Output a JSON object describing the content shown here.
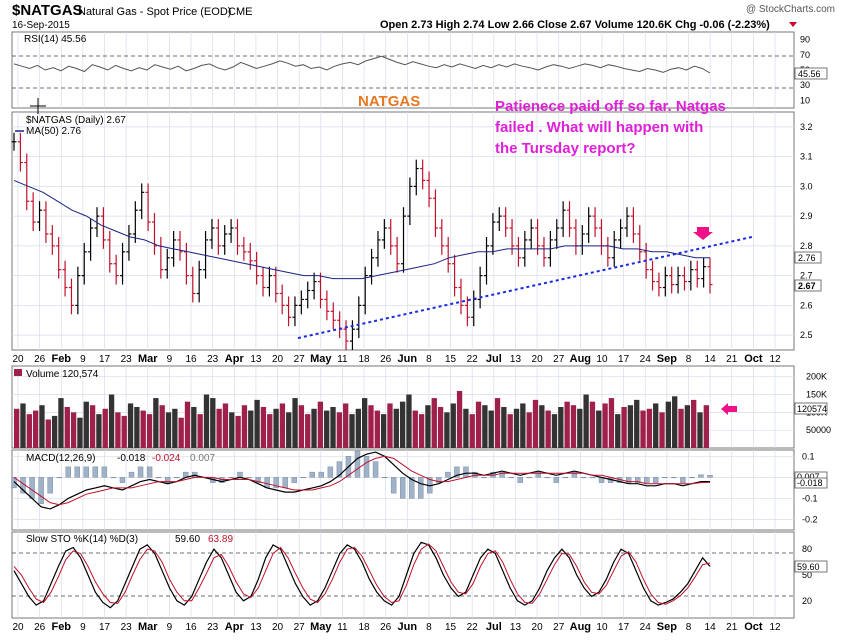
{
  "header": {
    "symbol": "$NATGAS",
    "description": "Natural Gas - Spot Price (EOD)",
    "exchange": "CME",
    "date": "16-Sep-2015",
    "watermark": "@ StockCharts.com",
    "ohlc_text": "Open 2.73  High 2.74  Low 2.66  Close 2.67  Volume 120.6K  Chg -0.06 (-2.23%)",
    "chg_arrow_color": "#cc0033"
  },
  "rsi": {
    "label": "RSI(14) 45.56",
    "value_label": "45.56",
    "levels": [
      "90",
      "70",
      "50",
      "30",
      "10"
    ],
    "series": [
      58,
      55,
      52,
      56,
      50,
      53,
      49,
      55,
      52,
      48,
      57,
      54,
      50,
      56,
      52,
      49,
      53,
      50,
      57,
      54,
      51,
      55,
      49,
      52,
      56,
      58,
      53,
      50,
      54,
      60,
      56,
      52,
      55,
      58,
      62,
      59,
      55,
      57,
      52,
      54,
      50,
      55,
      58,
      60,
      57,
      62,
      65,
      68,
      64,
      60,
      57,
      61,
      58,
      55,
      53,
      57,
      54,
      58,
      55,
      52,
      56,
      53,
      57,
      54,
      58,
      55,
      53,
      50,
      54,
      57,
      55,
      52,
      55,
      58,
      56,
      53,
      57,
      55,
      52,
      50,
      48,
      52,
      50,
      47,
      51,
      53,
      50,
      55,
      52,
      46
    ]
  },
  "annotations": {
    "natgas_label": "NATGAS",
    "comment_lines": [
      "Patienece paid off so far. Natgas",
      "failed .  What will happen with",
      "the Tursday report?"
    ]
  },
  "price": {
    "legend_symbol": "$NATGAS (Daily) 2.67",
    "legend_ma": "MA(50) 2.76",
    "y_ticks": [
      "3.2",
      "3.1",
      "3.0",
      "2.9",
      "2.8",
      "2.7",
      "2.6",
      "2.5"
    ],
    "close_label": "2.67",
    "ma_label": "2.76",
    "closes": [
      3.15,
      3.08,
      2.95,
      2.88,
      2.92,
      2.84,
      2.8,
      2.72,
      2.66,
      2.6,
      2.7,
      2.78,
      2.86,
      2.9,
      2.82,
      2.74,
      2.7,
      2.78,
      2.84,
      2.92,
      2.98,
      2.88,
      2.8,
      2.72,
      2.76,
      2.82,
      2.78,
      2.7,
      2.64,
      2.72,
      2.82,
      2.86,
      2.8,
      2.84,
      2.86,
      2.8,
      2.78,
      2.75,
      2.7,
      2.66,
      2.7,
      2.64,
      2.6,
      2.56,
      2.6,
      2.62,
      2.65,
      2.68,
      2.62,
      2.58,
      2.55,
      2.52,
      2.48,
      2.52,
      2.6,
      2.7,
      2.76,
      2.82,
      2.86,
      2.8,
      2.74,
      2.9,
      3.0,
      3.06,
      3.02,
      2.96,
      2.86,
      2.8,
      2.74,
      2.66,
      2.6,
      2.56,
      2.62,
      2.7,
      2.8,
      2.88,
      2.9,
      2.86,
      2.8,
      2.76,
      2.82,
      2.86,
      2.8,
      2.76,
      2.82,
      2.86,
      2.92,
      2.86,
      2.8,
      2.84,
      2.9,
      2.86,
      2.8,
      2.76,
      2.82,
      2.86,
      2.9,
      2.84,
      2.78,
      2.72,
      2.68,
      2.66,
      2.7,
      2.67,
      2.7,
      2.68,
      2.72,
      2.69,
      2.73,
      2.67
    ],
    "ma50": [
      3.02,
      3.0,
      2.98,
      2.95,
      2.92,
      2.9,
      2.87,
      2.85,
      2.83,
      2.82,
      2.8,
      2.79,
      2.78,
      2.77,
      2.76,
      2.75,
      2.74,
      2.73,
      2.72,
      2.71,
      2.7,
      2.7,
      2.69,
      2.69,
      2.69,
      2.7,
      2.71,
      2.72,
      2.73,
      2.74,
      2.76,
      2.77,
      2.78,
      2.78,
      2.79,
      2.79,
      2.79,
      2.79,
      2.8,
      2.8,
      2.8,
      2.8,
      2.79,
      2.79,
      2.78,
      2.78,
      2.77,
      2.76,
      2.76
    ],
    "trendline": {
      "start": 2.49,
      "end": 2.83
    }
  },
  "x_axis": {
    "labels": [
      {
        "t": "20",
        "b": false
      },
      {
        "t": "26",
        "b": false
      },
      {
        "t": "Feb",
        "b": true
      },
      {
        "t": "9",
        "b": false
      },
      {
        "t": "17",
        "b": false
      },
      {
        "t": "23",
        "b": false
      },
      {
        "t": "Mar",
        "b": true
      },
      {
        "t": "9",
        "b": false
      },
      {
        "t": "16",
        "b": false
      },
      {
        "t": "23",
        "b": false
      },
      {
        "t": "Apr",
        "b": true
      },
      {
        "t": "13",
        "b": false
      },
      {
        "t": "20",
        "b": false
      },
      {
        "t": "27",
        "b": false
      },
      {
        "t": "May",
        "b": true
      },
      {
        "t": "11",
        "b": false
      },
      {
        "t": "18",
        "b": false
      },
      {
        "t": "26",
        "b": false
      },
      {
        "t": "Jun",
        "b": true
      },
      {
        "t": "8",
        "b": false
      },
      {
        "t": "15",
        "b": false
      },
      {
        "t": "22",
        "b": false
      },
      {
        "t": "Jul",
        "b": true
      },
      {
        "t": "13",
        "b": false
      },
      {
        "t": "20",
        "b": false
      },
      {
        "t": "27",
        "b": false
      },
      {
        "t": "Aug",
        "b": true
      },
      {
        "t": "10",
        "b": false
      },
      {
        "t": "17",
        "b": false
      },
      {
        "t": "24",
        "b": false
      },
      {
        "t": "Sep",
        "b": true
      },
      {
        "t": "8",
        "b": false
      },
      {
        "t": "14",
        "b": false
      },
      {
        "t": "21",
        "b": false
      },
      {
        "t": "Oct",
        "b": true
      },
      {
        "t": "12",
        "b": false
      }
    ]
  },
  "volume": {
    "label": "Volume 120,574",
    "y_ticks": [
      "200K",
      "150K",
      "100K",
      "50000"
    ],
    "value_label": "120574",
    "up_color": "#333333",
    "down_color": "#a0204c",
    "values": [
      110,
      125,
      95,
      105,
      120,
      80,
      90,
      140,
      115,
      100,
      85,
      130,
      120,
      95,
      110,
      150,
      100,
      90,
      125,
      115,
      105,
      95,
      140,
      120,
      100,
      110,
      85,
      130,
      115,
      95,
      150,
      140,
      110,
      125,
      100,
      90,
      120,
      105,
      135,
      115,
      95,
      110,
      125,
      100,
      140,
      120,
      95,
      110,
      130,
      105,
      115,
      100,
      125,
      95,
      110,
      140,
      120,
      105,
      95,
      125,
      110,
      130,
      150,
      105,
      95,
      120,
      140,
      115,
      100,
      125,
      160,
      110,
      95,
      130,
      120,
      105,
      140,
      115,
      95,
      110,
      125,
      100,
      135,
      120,
      105,
      95,
      115,
      130,
      120,
      110,
      150,
      130,
      105,
      125,
      140,
      95,
      115,
      120,
      135,
      105,
      110,
      125,
      100,
      130,
      145,
      110,
      120,
      135,
      100,
      120
    ],
    "ups": [
      0,
      1,
      0,
      0,
      1,
      0,
      1,
      1,
      0,
      0,
      1,
      1,
      0,
      1,
      0,
      1,
      0,
      0,
      1,
      1,
      0,
      0,
      1,
      0,
      1,
      1,
      0,
      0,
      1,
      0,
      1,
      1,
      0,
      0,
      1,
      0,
      0,
      1,
      1,
      0,
      0,
      1,
      0,
      1,
      1,
      0,
      0,
      1,
      0,
      1,
      1,
      0,
      0,
      1,
      1,
      1,
      0,
      0,
      1,
      0,
      1,
      1,
      1,
      0,
      0,
      1,
      0,
      0,
      1,
      1,
      0,
      1,
      0,
      0,
      1,
      1,
      0,
      1,
      0,
      1,
      1,
      0,
      0,
      1,
      0,
      1,
      1,
      0,
      0,
      1,
      1,
      0,
      1,
      0,
      0,
      1,
      0,
      1,
      1,
      0,
      0,
      1,
      0,
      1,
      1,
      0,
      1,
      0,
      1,
      0
    ]
  },
  "macd": {
    "label": "MACD(12,26,9)",
    "v1": "-0.018",
    "v2": "-0.024",
    "v3": "0.007",
    "y_ticks": [
      "0.1",
      "0.0",
      "-0.1",
      "-0.2"
    ],
    "value_labels": [
      "0.007",
      "-0.018"
    ],
    "macd_series": [
      -0.02,
      -0.06,
      -0.1,
      -0.14,
      -0.15,
      -0.13,
      -0.1,
      -0.08,
      -0.06,
      -0.05,
      -0.04,
      -0.05,
      -0.06,
      -0.04,
      -0.02,
      -0.01,
      -0.02,
      -0.03,
      -0.02,
      0.0,
      0.01,
      0.0,
      -0.01,
      -0.02,
      -0.01,
      0.0,
      -0.01,
      -0.03,
      -0.05,
      -0.06,
      -0.07,
      -0.07,
      -0.06,
      -0.05,
      -0.04,
      -0.02,
      0.01,
      0.05,
      0.09,
      0.11,
      0.12,
      0.1,
      0.06,
      0.02,
      -0.01,
      -0.03,
      -0.04,
      -0.03,
      -0.01,
      0.01,
      0.02,
      0.02,
      0.01,
      0.02,
      0.03,
      0.02,
      0.01,
      0.02,
      0.03,
      0.02,
      0.01,
      0.02,
      0.03,
      0.02,
      0.01,
      0.0,
      -0.01,
      -0.02,
      -0.03,
      -0.03,
      -0.04,
      -0.04,
      -0.03,
      -0.03,
      -0.04,
      -0.03,
      -0.02,
      -0.02
    ],
    "signal_series": [
      0.0,
      -0.03,
      -0.06,
      -0.09,
      -0.12,
      -0.13,
      -0.12,
      -0.1,
      -0.08,
      -0.07,
      -0.06,
      -0.05,
      -0.05,
      -0.05,
      -0.04,
      -0.03,
      -0.02,
      -0.02,
      -0.02,
      -0.01,
      0.0,
      0.0,
      0.0,
      -0.01,
      -0.01,
      -0.01,
      -0.01,
      -0.02,
      -0.03,
      -0.04,
      -0.05,
      -0.06,
      -0.06,
      -0.06,
      -0.05,
      -0.04,
      -0.02,
      0.01,
      0.04,
      0.07,
      0.09,
      0.1,
      0.09,
      0.06,
      0.03,
      0.01,
      -0.01,
      -0.02,
      -0.02,
      -0.01,
      0.0,
      0.01,
      0.01,
      0.01,
      0.02,
      0.02,
      0.02,
      0.02,
      0.02,
      0.02,
      0.02,
      0.02,
      0.02,
      0.02,
      0.01,
      0.01,
      0.0,
      -0.01,
      -0.02,
      -0.02,
      -0.03,
      -0.03,
      -0.03,
      -0.03,
      -0.03,
      -0.03,
      -0.025,
      -0.024
    ]
  },
  "sto": {
    "label": "Slow STO %K(14) %D(3)",
    "v1": "59.60",
    "v2": "63.89",
    "y_ticks": [
      "80",
      "50",
      "20"
    ],
    "value_label": "59.60",
    "k_series": [
      55,
      40,
      25,
      15,
      20,
      40,
      60,
      78,
      82,
      70,
      50,
      30,
      18,
      12,
      20,
      40,
      60,
      80,
      85,
      75,
      55,
      35,
      20,
      15,
      25,
      45,
      65,
      80,
      70,
      50,
      30,
      20,
      25,
      45,
      70,
      85,
      80,
      60,
      40,
      25,
      15,
      20,
      35,
      55,
      75,
      85,
      80,
      65,
      45,
      30,
      20,
      15,
      25,
      50,
      75,
      88,
      85,
      70,
      50,
      35,
      25,
      30,
      50,
      70,
      80,
      75,
      55,
      35,
      20,
      15,
      20,
      35,
      55,
      70,
      80,
      70,
      50,
      35,
      25,
      30,
      45,
      65,
      80,
      75,
      55,
      35,
      20,
      15,
      18,
      22,
      30,
      40,
      55,
      70,
      60
    ],
    "d_series": [
      60,
      50,
      35,
      22,
      18,
      30,
      48,
      68,
      78,
      75,
      60,
      42,
      28,
      18,
      17,
      30,
      50,
      68,
      80,
      78,
      65,
      45,
      30,
      20,
      20,
      35,
      52,
      70,
      74,
      60,
      42,
      28,
      24,
      35,
      55,
      75,
      82,
      70,
      52,
      35,
      22,
      18,
      28,
      45,
      65,
      80,
      82,
      72,
      55,
      38,
      25,
      18,
      20,
      38,
      62,
      80,
      86,
      78,
      60,
      42,
      30,
      28,
      40,
      60,
      75,
      78,
      65,
      45,
      28,
      18,
      17,
      28,
      45,
      62,
      75,
      74,
      60,
      42,
      30,
      28,
      38,
      55,
      72,
      77,
      65,
      45,
      28,
      18,
      16,
      20,
      26,
      35,
      48,
      62,
      64
    ]
  },
  "callouts": {
    "arrow_color": "#ee1188"
  }
}
